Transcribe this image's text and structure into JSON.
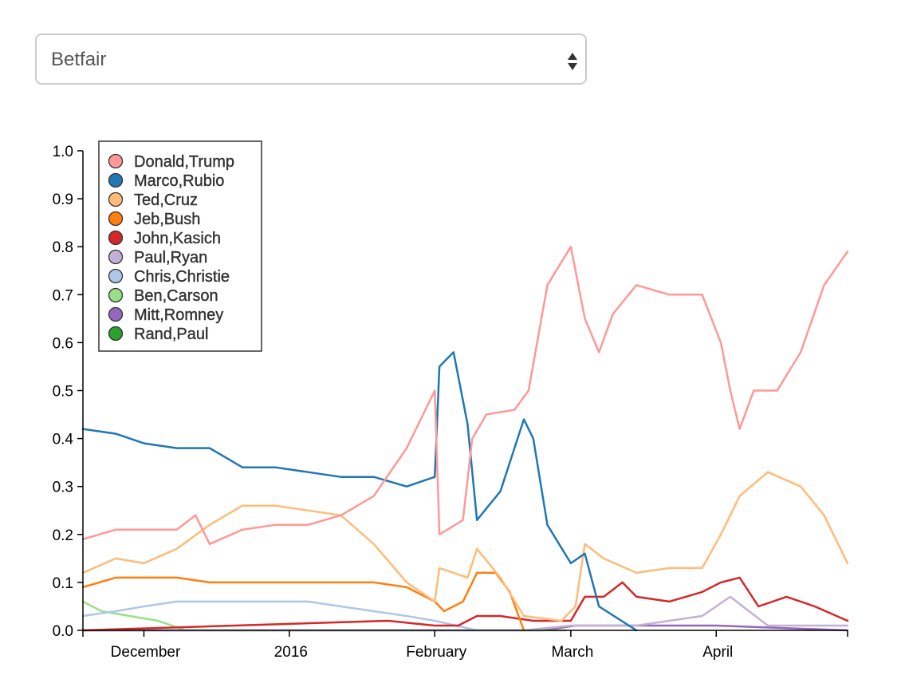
{
  "source_select": {
    "selected": "Betfair"
  },
  "chart_data": {
    "type": "line",
    "title": "",
    "xlabel": "",
    "ylabel": "",
    "x_range": [
      "2015-11-18",
      "2016-04-29"
    ],
    "ylim": [
      0,
      1.0
    ],
    "y_ticks": [
      "0.0",
      "0.1",
      "0.2",
      "0.3",
      "0.4",
      "0.5",
      "0.6",
      "0.7",
      "0.8",
      "0.9",
      "1.0"
    ],
    "x_ticks": [
      {
        "label": "December",
        "date": "2015-12-01"
      },
      {
        "label": "2016",
        "date": "2016-01-01"
      },
      {
        "label": "February",
        "date": "2016-02-01"
      },
      {
        "label": "March",
        "date": "2016-03-01"
      },
      {
        "label": "April",
        "date": "2016-04-01"
      }
    ],
    "grid": false,
    "legend_position": "top-left",
    "series": [
      {
        "name": "Donald,Trump",
        "color": "#ff9896",
        "points": [
          [
            "2015-11-18",
            0.19
          ],
          [
            "2015-11-25",
            0.21
          ],
          [
            "2015-12-01",
            0.21
          ],
          [
            "2015-12-08",
            0.21
          ],
          [
            "2015-12-12",
            0.24
          ],
          [
            "2015-12-15",
            0.18
          ],
          [
            "2015-12-22",
            0.21
          ],
          [
            "2015-12-29",
            0.22
          ],
          [
            "2016-01-05",
            0.22
          ],
          [
            "2016-01-12",
            0.24
          ],
          [
            "2016-01-19",
            0.28
          ],
          [
            "2016-01-26",
            0.38
          ],
          [
            "2016-02-01",
            0.5
          ],
          [
            "2016-02-02",
            0.2
          ],
          [
            "2016-02-07",
            0.23
          ],
          [
            "2016-02-09",
            0.4
          ],
          [
            "2016-02-12",
            0.45
          ],
          [
            "2016-02-18",
            0.46
          ],
          [
            "2016-02-21",
            0.5
          ],
          [
            "2016-02-25",
            0.72
          ],
          [
            "2016-03-01",
            0.8
          ],
          [
            "2016-03-04",
            0.65
          ],
          [
            "2016-03-07",
            0.58
          ],
          [
            "2016-03-10",
            0.66
          ],
          [
            "2016-03-15",
            0.72
          ],
          [
            "2016-03-22",
            0.7
          ],
          [
            "2016-03-29",
            0.7
          ],
          [
            "2016-04-02",
            0.6
          ],
          [
            "2016-04-04",
            0.5
          ],
          [
            "2016-04-06",
            0.42
          ],
          [
            "2016-04-09",
            0.5
          ],
          [
            "2016-04-14",
            0.5
          ],
          [
            "2016-04-19",
            0.58
          ],
          [
            "2016-04-24",
            0.72
          ],
          [
            "2016-04-29",
            0.79
          ]
        ]
      },
      {
        "name": "Marco,Rubio",
        "color": "#1f77b4",
        "points": [
          [
            "2015-11-18",
            0.42
          ],
          [
            "2015-11-25",
            0.41
          ],
          [
            "2015-12-01",
            0.39
          ],
          [
            "2015-12-08",
            0.38
          ],
          [
            "2015-12-15",
            0.38
          ],
          [
            "2015-12-22",
            0.34
          ],
          [
            "2015-12-29",
            0.34
          ],
          [
            "2016-01-05",
            0.33
          ],
          [
            "2016-01-12",
            0.32
          ],
          [
            "2016-01-19",
            0.32
          ],
          [
            "2016-01-26",
            0.3
          ],
          [
            "2016-02-01",
            0.32
          ],
          [
            "2016-02-02",
            0.55
          ],
          [
            "2016-02-05",
            0.58
          ],
          [
            "2016-02-08",
            0.43
          ],
          [
            "2016-02-10",
            0.23
          ],
          [
            "2016-02-15",
            0.29
          ],
          [
            "2016-02-20",
            0.44
          ],
          [
            "2016-02-22",
            0.4
          ],
          [
            "2016-02-25",
            0.22
          ],
          [
            "2016-03-01",
            0.14
          ],
          [
            "2016-03-04",
            0.16
          ],
          [
            "2016-03-07",
            0.05
          ],
          [
            "2016-03-15",
            0.0
          ]
        ]
      },
      {
        "name": "Ted,Cruz",
        "color": "#ffbb78",
        "points": [
          [
            "2015-11-18",
            0.12
          ],
          [
            "2015-11-25",
            0.15
          ],
          [
            "2015-12-01",
            0.14
          ],
          [
            "2015-12-08",
            0.17
          ],
          [
            "2015-12-15",
            0.22
          ],
          [
            "2015-12-22",
            0.26
          ],
          [
            "2015-12-29",
            0.26
          ],
          [
            "2016-01-05",
            0.25
          ],
          [
            "2016-01-12",
            0.24
          ],
          [
            "2016-01-19",
            0.18
          ],
          [
            "2016-01-26",
            0.1
          ],
          [
            "2016-02-01",
            0.06
          ],
          [
            "2016-02-02",
            0.13
          ],
          [
            "2016-02-08",
            0.11
          ],
          [
            "2016-02-10",
            0.17
          ],
          [
            "2016-02-15",
            0.11
          ],
          [
            "2016-02-20",
            0.03
          ],
          [
            "2016-02-28",
            0.02
          ],
          [
            "2016-03-02",
            0.05
          ],
          [
            "2016-03-04",
            0.18
          ],
          [
            "2016-03-08",
            0.15
          ],
          [
            "2016-03-15",
            0.12
          ],
          [
            "2016-03-22",
            0.13
          ],
          [
            "2016-03-29",
            0.13
          ],
          [
            "2016-04-02",
            0.2
          ],
          [
            "2016-04-06",
            0.28
          ],
          [
            "2016-04-12",
            0.33
          ],
          [
            "2016-04-19",
            0.3
          ],
          [
            "2016-04-24",
            0.24
          ],
          [
            "2016-04-29",
            0.14
          ]
        ]
      },
      {
        "name": "Jeb,Bush",
        "color": "#ff7f0e",
        "points": [
          [
            "2015-11-18",
            0.09
          ],
          [
            "2015-11-25",
            0.11
          ],
          [
            "2015-12-01",
            0.11
          ],
          [
            "2015-12-08",
            0.11
          ],
          [
            "2015-12-15",
            0.1
          ],
          [
            "2015-12-22",
            0.1
          ],
          [
            "2015-12-29",
            0.1
          ],
          [
            "2016-01-05",
            0.1
          ],
          [
            "2016-01-12",
            0.1
          ],
          [
            "2016-01-19",
            0.1
          ],
          [
            "2016-01-26",
            0.09
          ],
          [
            "2016-02-01",
            0.06
          ],
          [
            "2016-02-03",
            0.04
          ],
          [
            "2016-02-07",
            0.06
          ],
          [
            "2016-02-10",
            0.12
          ],
          [
            "2016-02-14",
            0.12
          ],
          [
            "2016-02-17",
            0.08
          ],
          [
            "2016-02-20",
            0.0
          ]
        ]
      },
      {
        "name": "John,Kasich",
        "color": "#d62728",
        "points": [
          [
            "2015-11-18",
            0.0
          ],
          [
            "2016-01-22",
            0.02
          ],
          [
            "2016-02-01",
            0.01
          ],
          [
            "2016-02-06",
            0.01
          ],
          [
            "2016-02-10",
            0.03
          ],
          [
            "2016-02-15",
            0.03
          ],
          [
            "2016-02-22",
            0.02
          ],
          [
            "2016-03-01",
            0.02
          ],
          [
            "2016-03-04",
            0.07
          ],
          [
            "2016-03-08",
            0.07
          ],
          [
            "2016-03-12",
            0.1
          ],
          [
            "2016-03-15",
            0.07
          ],
          [
            "2016-03-22",
            0.06
          ],
          [
            "2016-03-29",
            0.08
          ],
          [
            "2016-04-02",
            0.1
          ],
          [
            "2016-04-06",
            0.11
          ],
          [
            "2016-04-10",
            0.05
          ],
          [
            "2016-04-16",
            0.07
          ],
          [
            "2016-04-22",
            0.05
          ],
          [
            "2016-04-29",
            0.02
          ]
        ]
      },
      {
        "name": "Paul,Ryan",
        "color": "#c5b0d5",
        "points": [
          [
            "2015-11-18",
            0.0
          ],
          [
            "2016-02-20",
            0.0
          ],
          [
            "2016-03-01",
            0.01
          ],
          [
            "2016-03-10",
            0.01
          ],
          [
            "2016-03-15",
            0.01
          ],
          [
            "2016-03-22",
            0.02
          ],
          [
            "2016-03-29",
            0.03
          ],
          [
            "2016-04-04",
            0.07
          ],
          [
            "2016-04-08",
            0.04
          ],
          [
            "2016-04-12",
            0.01
          ],
          [
            "2016-04-29",
            0.01
          ]
        ]
      },
      {
        "name": "Chris,Christie",
        "color": "#aec7e8",
        "points": [
          [
            "2015-11-18",
            0.03
          ],
          [
            "2015-11-25",
            0.04
          ],
          [
            "2015-12-01",
            0.05
          ],
          [
            "2015-12-08",
            0.06
          ],
          [
            "2015-12-15",
            0.06
          ],
          [
            "2015-12-22",
            0.06
          ],
          [
            "2015-12-29",
            0.06
          ],
          [
            "2016-01-05",
            0.06
          ],
          [
            "2016-01-12",
            0.05
          ],
          [
            "2016-01-19",
            0.04
          ],
          [
            "2016-01-26",
            0.03
          ],
          [
            "2016-02-01",
            0.02
          ],
          [
            "2016-02-10",
            0.0
          ]
        ]
      },
      {
        "name": "Ben,Carson",
        "color": "#98df8a",
        "points": [
          [
            "2015-11-18",
            0.06
          ],
          [
            "2015-11-22",
            0.04
          ],
          [
            "2015-11-28",
            0.03
          ],
          [
            "2015-12-04",
            0.02
          ],
          [
            "2015-12-10",
            0.0
          ],
          [
            "2016-02-29",
            0.0
          ]
        ]
      },
      {
        "name": "Mitt,Romney",
        "color": "#9467bd",
        "points": [
          [
            "2015-11-18",
            0.0
          ],
          [
            "2016-02-24",
            0.0
          ],
          [
            "2016-03-02",
            0.01
          ],
          [
            "2016-03-15",
            0.01
          ],
          [
            "2016-04-01",
            0.01
          ],
          [
            "2016-04-29",
            0.0
          ]
        ]
      },
      {
        "name": "Rand,Paul",
        "color": "#2ca02c",
        "points": [
          [
            "2015-11-18",
            0.0
          ],
          [
            "2016-02-03",
            0.0
          ]
        ]
      }
    ]
  }
}
